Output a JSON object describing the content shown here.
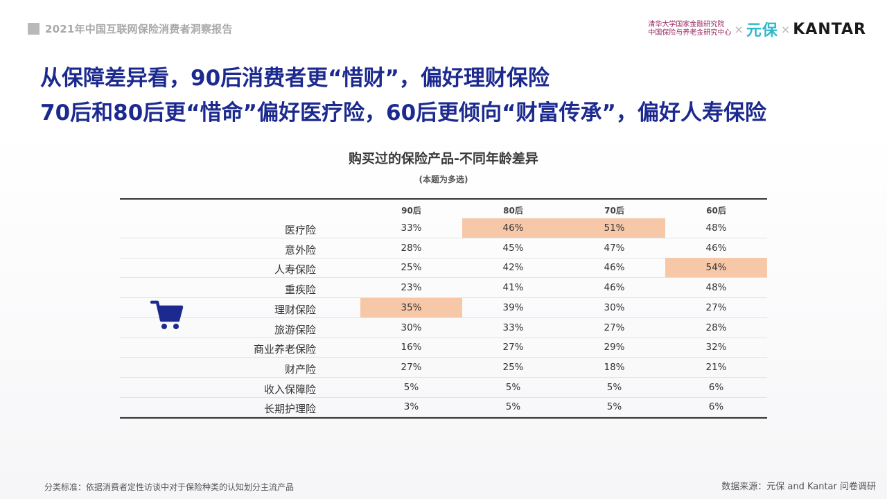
{
  "header": {
    "report_title": "2021年中国互联网保险消费者洞察报告"
  },
  "logos": {
    "tsinghua_line1": "清华大学国家金融研究院",
    "tsinghua_line2": "中国保险与养老金研究中心",
    "separator": "×",
    "yuanbao": "元保",
    "kantar": "KANTAR"
  },
  "headline": {
    "line1": "从保障差异看，90后消费者更“惜财”，偏好理财保险",
    "line2": "70后和80后更“惜命”偏好医疗险，60后更倾向“财富传承”，偏好人寿保险"
  },
  "colors": {
    "highlight": "#f7c8a8",
    "headline": "#1c2a8f",
    "cart": "#1c2a8f"
  },
  "icons": {
    "cart": "shopping-cart-icon"
  },
  "chart_data": {
    "type": "table",
    "title": "购买过的保险产品-不同年龄差异",
    "subtitle": "(本题为多选)",
    "columns": [
      "90后",
      "80后",
      "70后",
      "60后"
    ],
    "rows": [
      {
        "label": "医疗险",
        "values": [
          "33%",
          "46%",
          "51%",
          "48%"
        ],
        "highlight": [
          false,
          true,
          true,
          false
        ]
      },
      {
        "label": "意外险",
        "values": [
          "28%",
          "45%",
          "47%",
          "46%"
        ],
        "highlight": [
          false,
          false,
          false,
          false
        ]
      },
      {
        "label": "人寿保险",
        "values": [
          "25%",
          "42%",
          "46%",
          "54%"
        ],
        "highlight": [
          false,
          false,
          false,
          true
        ]
      },
      {
        "label": "重疾险",
        "values": [
          "23%",
          "41%",
          "46%",
          "48%"
        ],
        "highlight": [
          false,
          false,
          false,
          false
        ]
      },
      {
        "label": "理财保险",
        "values": [
          "35%",
          "39%",
          "30%",
          "27%"
        ],
        "highlight": [
          true,
          false,
          false,
          false
        ]
      },
      {
        "label": "旅游保险",
        "values": [
          "30%",
          "33%",
          "27%",
          "28%"
        ],
        "highlight": [
          false,
          false,
          false,
          false
        ]
      },
      {
        "label": "商业养老保险",
        "values": [
          "16%",
          "27%",
          "29%",
          "32%"
        ],
        "highlight": [
          false,
          false,
          false,
          false
        ]
      },
      {
        "label": "财产险",
        "values": [
          "27%",
          "25%",
          "18%",
          "21%"
        ],
        "highlight": [
          false,
          false,
          false,
          false
        ]
      },
      {
        "label": "收入保障险",
        "values": [
          "5%",
          "5%",
          "5%",
          "6%"
        ],
        "highlight": [
          false,
          false,
          false,
          false
        ]
      },
      {
        "label": "长期护理险",
        "values": [
          "3%",
          "5%",
          "5%",
          "6%"
        ],
        "highlight": [
          false,
          false,
          false,
          false
        ]
      }
    ]
  },
  "footer": {
    "note": "分类标准：依据消费者定性访谈中对于保险种类的认知划分主流产品",
    "source": "数据来源：元保 and Kantar 问卷调研"
  }
}
